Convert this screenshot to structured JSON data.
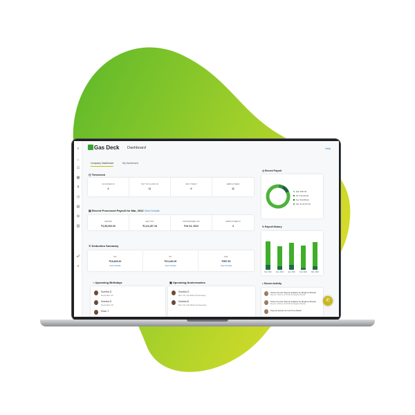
{
  "app": {
    "brand": "Gas Deck",
    "page": "Dashboard",
    "help": "Help"
  },
  "colors": {
    "accent": "#3aa335",
    "bar_light": "#3fae2a",
    "bar_dark": "#1f6b4a",
    "blob_start": "#5cb82a",
    "blob_end": "#d8dc2a",
    "fab": "#c9b81e"
  },
  "sidebar": {
    "icons": [
      "menu-icon",
      "home-icon",
      "team-icon",
      "calendar-icon",
      "rupee-icon",
      "clock-icon",
      "document-icon",
      "settings-icon",
      "chart-icon",
      "notification-icon",
      "avatar-icon"
    ]
  },
  "tabs": [
    {
      "label": "Company Dashboard",
      "active": true
    },
    {
      "label": "My Dashboard",
      "active": false
    }
  ],
  "timeclock": {
    "title": "Timeclock",
    "items": [
      {
        "label": "CLOCKED IN",
        "value": "0"
      },
      {
        "label": "YET TO CLOCK IN",
        "value": "11"
      },
      {
        "label": "OFF TODAY",
        "value": "0"
      },
      {
        "label": "EMPLOYEES",
        "value": "11"
      }
    ]
  },
  "payroll": {
    "title": "Recent Processed Payroll for Mar, 2022",
    "link": "View Details",
    "items": [
      {
        "label": "GROSS",
        "value": "₹1,55,000.00"
      },
      {
        "label": "NET PAY",
        "value": "₹1,24,157.18"
      },
      {
        "label": "PROCESSED ON",
        "value": "Feb 04, 2022"
      },
      {
        "label": "EMPLOYEES #",
        "value": "3"
      }
    ]
  },
  "deductions": {
    "title": "Deduction Summary",
    "items": [
      {
        "label": "Tax",
        "value": "₹16,845.32",
        "link": "View Details"
      },
      {
        "label": "PF",
        "value": "₹10,440.00",
        "link": "View Details"
      },
      {
        "label": "ESI",
        "value": "₹557.50",
        "link": "View Details"
      }
    ]
  },
  "birthdays": {
    "title": "Upcoming Birthdays",
    "items": [
      {
        "name": "Sunitha D",
        "date": "November 11"
      },
      {
        "name": "Swetha D",
        "date": "November 15"
      },
      {
        "name": "Kiran Y",
        "date": ""
      }
    ]
  },
  "anniversaries": {
    "title": "Upcoming Anniversaries",
    "items": [
      {
        "name": "Sunitha D",
        "date": "Dec 15, 1st Work Anniversary"
      },
      {
        "name": "Swetha B",
        "date": "Dec 16, 2nd Work Anniversary"
      }
    ]
  },
  "recent_payroll": {
    "title": "Recent Payroll",
    "legend": [
      "ESI: ₹557.50",
      "PF: ₹10,440.00",
      "Tax: ₹16,845.32",
      "Net: ₹1,24,157.18"
    ]
  },
  "chart_data": [
    {
      "type": "pie",
      "title": "Recent Payroll",
      "categories": [
        "ESI",
        "PF",
        "Tax",
        "Net"
      ],
      "values": [
        557.5,
        10440,
        16845.32,
        124157.18
      ],
      "colors": [
        "#8fd16a",
        "#2f8f3a",
        "#1f5f3f",
        "#4cb33a"
      ]
    },
    {
      "type": "bar",
      "title": "Payroll History",
      "categories": [
        "Nov, 2021",
        "Dec, 2021",
        "Jan, 2022",
        "Feb, 2022",
        "Mar, 2022"
      ],
      "series": [
        {
          "values": [
            82,
            68,
            78,
            70,
            80
          ]
        },
        {
          "values": [
            14,
            10,
            14,
            5,
            10
          ]
        }
      ]
    }
  ],
  "activity": {
    "title": "Recent Activity",
    "items": [
      {
        "text": "Pravin Kumar Payroll updated by Meghna Sharan",
        "sub": "May 01, 2022 at 11:23 AM by Meghna Sharan"
      },
      {
        "text": "Pravin Kumar Payroll updated by Meghna Sharan",
        "sub": "May 01, 2022 at 11:23 AM by Meghna Sharan"
      },
      {
        "text": "Payroll started for Full Time Batch",
        "sub": ""
      }
    ]
  }
}
